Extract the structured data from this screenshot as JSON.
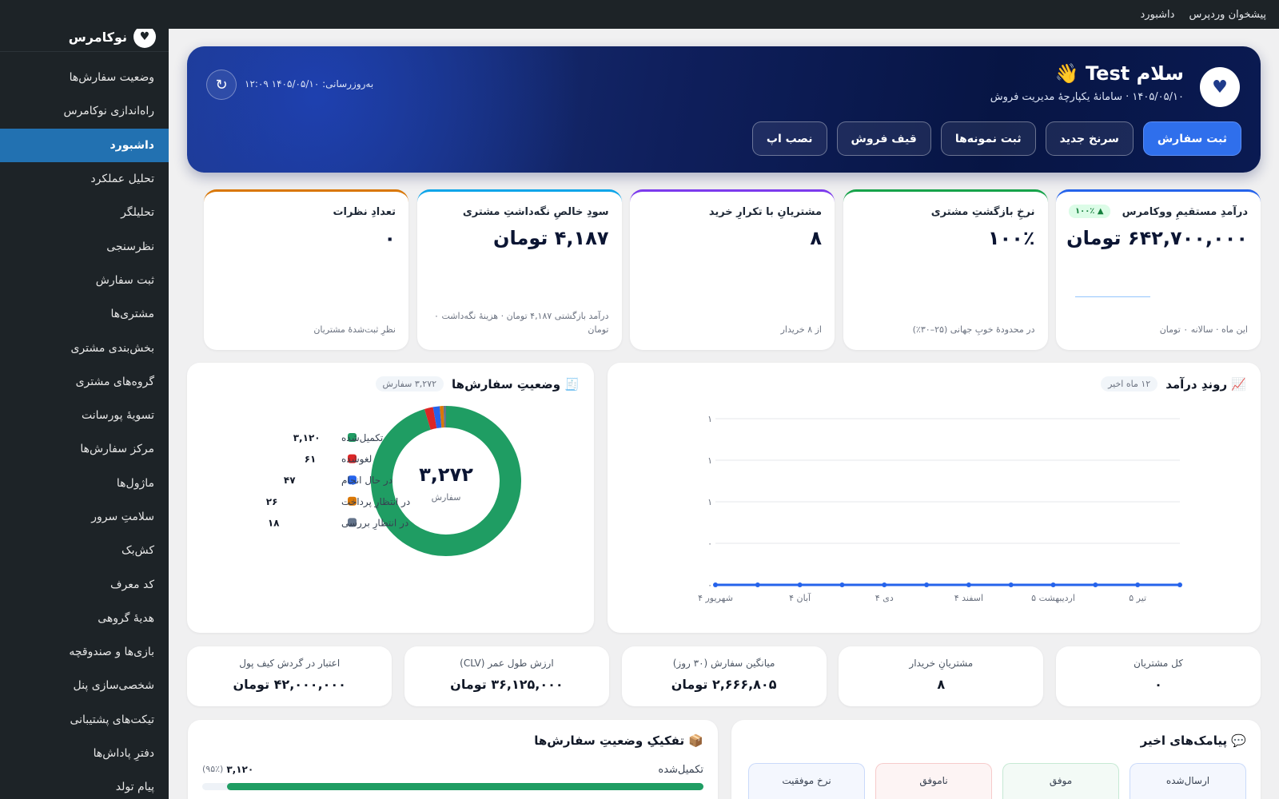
{
  "topbar": {
    "links": [
      "پیشخوان وردپرس",
      "داشبورد"
    ]
  },
  "sidebar": {
    "brand": "نوکامرس",
    "active_index": 2,
    "items": [
      "وضعیت سفارش‌ها",
      "راه‌اندازی نوکامرس",
      "داشبورد",
      "تحلیل عملکرد",
      "تحلیلگر",
      "نظرسنجی",
      "ثبت سفارش",
      "مشتری‌ها",
      "بخش‌بندی مشتری",
      "گروه‌های مشتری",
      "تسویهٔ پورسانت",
      "مرکز سفارش‌ها",
      "ماژول‌ها",
      "سلامتِ سرور",
      "کش‌بک",
      "کد معرف",
      "هدیهٔ گروهی",
      "بازی‌ها و صندوقچه",
      "شخصی‌سازی پنل",
      "تیکت‌های پشتیبانی",
      "دفترِ پاداش‌ها",
      "پیام تولد"
    ]
  },
  "hero": {
    "title": "سلام Test 👋",
    "subtitle": "۱۴۰۵/۰۵/۱۰ · سامانهٔ یکپارچهٔ مدیریت فروش",
    "updated": "به‌روزرسانی: ۱۴۰۵/۰۵/۱۰ ۱۲:۰۹",
    "refresh": "↻",
    "buttons": [
      "ثبت سفارش",
      "سرنخ جدید",
      "ثبت نمونه‌ها",
      "قیف فروش",
      "نصب اپ"
    ]
  },
  "kpis": [
    {
      "title": "درآمدِ مستقیمِ ووکامرس",
      "value": "۶۴۲,۷۰۰,۰۰۰ تومان",
      "note": "این ماه · سالانه ۰ تومان",
      "badge": "▲ ۱۰۰٪",
      "color": "#2563eb"
    },
    {
      "title": "نرخِ بازگشتِ مشتری",
      "value": "۱۰۰٪",
      "note": "در محدودهٔ خوبِ جهانی (۲۵–۳۰٪)",
      "color": "#16a34a"
    },
    {
      "title": "مشتریانِ با تکرارِ خرید",
      "value": "۸",
      "note": "از ۸ خریدار",
      "color": "#7c3aed"
    },
    {
      "title": "سودِ خالصِ نگه‌داشتِ مشتری",
      "value": "۴,۱۸۷ تومان",
      "note": "درآمد بازگشتی ۴,۱۸۷ تومان · هزینهٔ نگه‌داشت ۰ تومان",
      "color": "#0ea5e9"
    },
    {
      "title": "تعدادِ نظرات",
      "value": "۰",
      "note": "نظرِ ثبت‌شدهٔ مشتریان",
      "color": "#d97706"
    }
  ],
  "revenue_chart": {
    "type": "line",
    "title": "📈 روندِ درآمد",
    "badge": "۱۲ ماه اخیر",
    "categories": [
      "شهریور ۴",
      null,
      "آبان ۴",
      null,
      "دی ۴",
      null,
      "اسفند ۴",
      null,
      "اردیبهشت ۵",
      null,
      "تیر ۵",
      null
    ],
    "values": [
      0,
      0,
      0,
      0,
      0,
      0,
      0,
      0,
      0,
      0,
      0,
      0
    ],
    "color": "#2563eb",
    "ylim": [
      0,
      1
    ],
    "yticks": [
      {
        "value": 1,
        "label": "۱"
      },
      {
        "value": 0.75,
        "label": "۱"
      },
      {
        "value": 0.5,
        "label": "۱"
      },
      {
        "value": 0.25,
        "label": "۰"
      },
      {
        "value": 0,
        "label": "۰"
      }
    ],
    "grid": true
  },
  "orders_chart": {
    "type": "donut",
    "title": "🧾 وضعیتِ سفارش‌ها",
    "badge": "۳,۲۷۲ سفارش",
    "center_value": "۳,۲۷۲",
    "center_label": "سفارش",
    "categories": [
      "تکمیل‌شده",
      "لغوشده",
      "در حال انجام",
      "در انتظارِ پرداخت",
      "در انتظارِ بررسی"
    ],
    "values": [
      3120,
      61,
      47,
      26,
      18
    ],
    "value_labels": [
      "۳,۱۲۰",
      "۶۱",
      "۴۷",
      "۲۶",
      "۱۸"
    ],
    "colors": [
      "#1f9d63",
      "#dc2626",
      "#2563eb",
      "#d97706",
      "#64748b"
    ]
  },
  "stats": [
    {
      "label": "کل مشتریان",
      "value": "۰"
    },
    {
      "label": "مشتریانِ خریدار",
      "value": "۸"
    },
    {
      "label": "میانگین سفارش (۳۰ روز)",
      "value": "۲,۶۶۶,۸۰۵ تومان"
    },
    {
      "label": "ارزش طول عمر (CLV)",
      "value": "۳۶,۱۲۵,۰۰۰ تومان"
    },
    {
      "label": "اعتبار در گردش کیف پول",
      "value": "۴۲,۰۰۰,۰۰۰ تومان"
    }
  ],
  "sms": {
    "title": "💬 پیامک‌های اخیر",
    "boxes": [
      {
        "label": "ارسال‌شده",
        "color": "#2563eb"
      },
      {
        "label": "موفق",
        "color": "#16a34a"
      },
      {
        "label": "ناموفق",
        "color": "#dc2626"
      },
      {
        "label": "نرخ موفقیت",
        "color": "#2563eb"
      }
    ]
  },
  "breakdown": {
    "title": "📦 تفکیکِ وضعیتِ سفارش‌ها",
    "rows": [
      {
        "label": "تکمیل‌شده",
        "count": "۳,۱۲۰",
        "percent": 95,
        "percent_label": "(۹۵٪)",
        "color": "#1f9d63"
      }
    ]
  }
}
